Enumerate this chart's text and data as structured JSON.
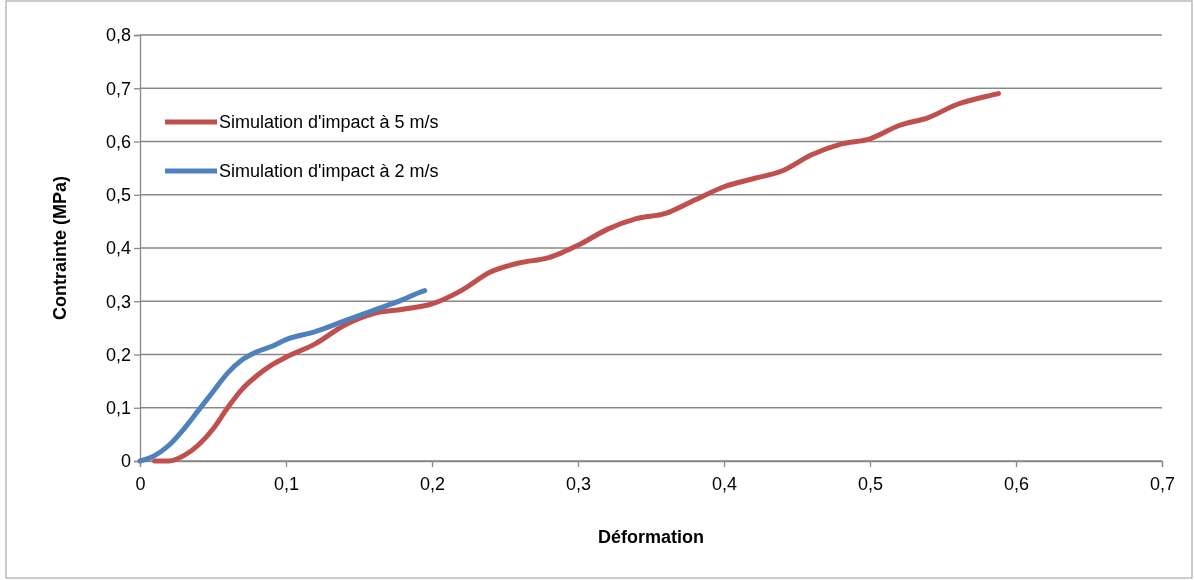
{
  "chart_data": {
    "type": "line",
    "xlabel": "Déformation",
    "ylabel": "Contrainte (MPa)",
    "xlim": [
      0,
      0.7
    ],
    "xticks": [
      {
        "value": 0,
        "label": "0"
      },
      {
        "value": 0.1,
        "label": "0,1"
      },
      {
        "value": 0.2,
        "label": "0,2"
      },
      {
        "value": 0.3,
        "label": "0,3"
      },
      {
        "value": 0.4,
        "label": "0,4"
      },
      {
        "value": 0.5,
        "label": "0,5"
      },
      {
        "value": 0.6,
        "label": "0,6"
      },
      {
        "value": 0.7,
        "label": "0,7"
      }
    ],
    "ylim": [
      0,
      0.8
    ],
    "yticks": [
      {
        "value": 0,
        "label": "0"
      },
      {
        "value": 0.1,
        "label": "0,1"
      },
      {
        "value": 0.2,
        "label": "0,2"
      },
      {
        "value": 0.3,
        "label": "0,3"
      },
      {
        "value": 0.4,
        "label": "0,4"
      },
      {
        "value": 0.5,
        "label": "0,5"
      },
      {
        "value": 0.6,
        "label": "0,6"
      },
      {
        "value": 0.7,
        "label": "0,7"
      },
      {
        "value": 0.8,
        "label": "0,8"
      }
    ],
    "grid": "y",
    "legend": "top left",
    "marker": "none",
    "line_style": "solid",
    "series": [
      {
        "name": "Simulation d'impact à 5 m/s",
        "color": "#c0504d",
        "x": [
          0.01,
          0.02,
          0.03,
          0.04,
          0.05,
          0.06,
          0.07,
          0.08,
          0.09,
          0.1,
          0.12,
          0.14,
          0.16,
          0.18,
          0.2,
          0.22,
          0.24,
          0.26,
          0.28,
          0.3,
          0.32,
          0.34,
          0.36,
          0.38,
          0.4,
          0.42,
          0.44,
          0.46,
          0.48,
          0.5,
          0.52,
          0.54,
          0.56,
          0.58,
          0.588
        ],
        "values": [
          0,
          0,
          0.01,
          0.03,
          0.06,
          0.1,
          0.135,
          0.16,
          0.18,
          0.195,
          0.22,
          0.255,
          0.277,
          0.285,
          0.295,
          0.32,
          0.355,
          0.372,
          0.382,
          0.405,
          0.435,
          0.455,
          0.465,
          0.49,
          0.515,
          0.53,
          0.545,
          0.575,
          0.595,
          0.605,
          0.63,
          0.645,
          0.67,
          0.685,
          0.69
        ]
      },
      {
        "name": "Simulation d'impact à 2 m/s",
        "color": "#4f81bd",
        "x": [
          0,
          0.01,
          0.02,
          0.03,
          0.04,
          0.05,
          0.06,
          0.07,
          0.08,
          0.09,
          0.1,
          0.12,
          0.14,
          0.16,
          0.18,
          0.19,
          0.195
        ],
        "values": [
          0,
          0.01,
          0.03,
          0.06,
          0.095,
          0.13,
          0.165,
          0.19,
          0.205,
          0.215,
          0.228,
          0.243,
          0.263,
          0.283,
          0.303,
          0.315,
          0.32
        ]
      }
    ]
  }
}
